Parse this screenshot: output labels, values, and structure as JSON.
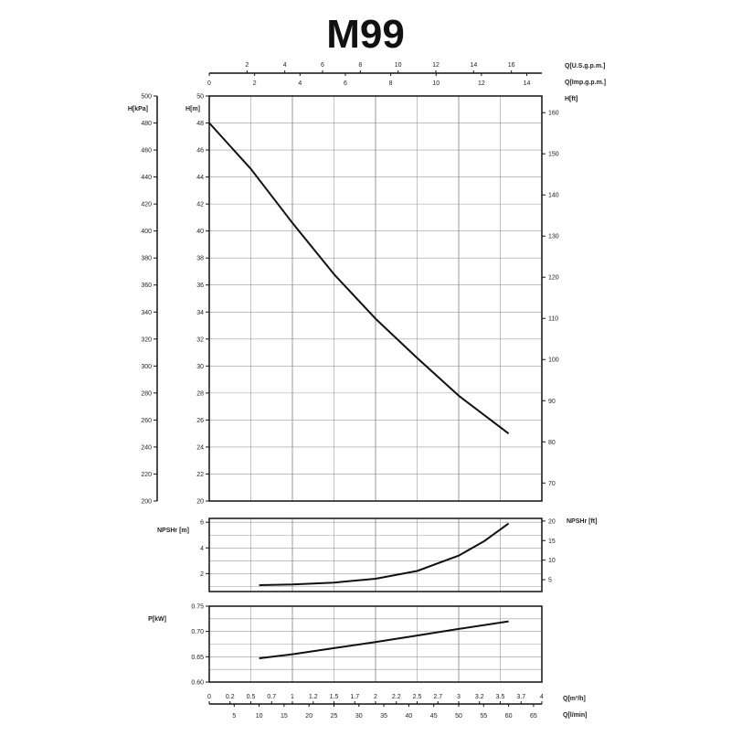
{
  "chart_data": [
    {
      "type": "line",
      "title": "M99",
      "xlabel": "Q[m³/h]",
      "ylabel": "H[m]",
      "secondary_ylabel_left": "H[kPa]",
      "secondary_ylabel_right": "H[ft]",
      "xlim": [
        0,
        4
      ],
      "ylim": [
        20,
        50
      ],
      "grid": true,
      "x": [
        0,
        0.5,
        1,
        1.5,
        2,
        2.5,
        3,
        3.6
      ],
      "y": [
        48,
        44.6,
        40.6,
        36.8,
        33.5,
        30.6,
        27.8,
        25
      ],
      "yticks": [
        "20",
        "22",
        "24",
        "26",
        "28",
        "30",
        "32",
        "34",
        "36",
        "38",
        "40",
        "42",
        "44",
        "46",
        "48",
        "50"
      ],
      "kpa_ticks": [
        "200",
        "220",
        "240",
        "260",
        "280",
        "300",
        "320",
        "340",
        "360",
        "380",
        "400",
        "420",
        "440",
        "460",
        "480",
        "500"
      ],
      "ft_ticks": [
        "70",
        "80",
        "90",
        "100",
        "110",
        "120",
        "130",
        "140",
        "150",
        "160"
      ]
    },
    {
      "type": "line",
      "ylabel": "NPSHr [m]",
      "secondary_ylabel_right": "NPSHr [ft]",
      "xlim": [
        0,
        4
      ],
      "ylim": [
        0.6,
        6.3
      ],
      "grid": true,
      "x": [
        0.6,
        1,
        1.5,
        2,
        2.5,
        3,
        3.3,
        3.6
      ],
      "y": [
        1.1,
        1.15,
        1.3,
        1.6,
        2.2,
        3.4,
        4.5,
        5.9
      ],
      "yticks": [
        "2",
        "4",
        "6"
      ],
      "ft_ticks": [
        "5",
        "10",
        "15",
        "20"
      ]
    },
    {
      "type": "line",
      "ylabel": "P[kW]",
      "xlim": [
        0,
        4
      ],
      "ylim": [
        0.6,
        0.75
      ],
      "grid": true,
      "x": [
        0.6,
        1,
        1.5,
        2,
        2.5,
        3,
        3.6
      ],
      "y": [
        0.647,
        0.655,
        0.667,
        0.679,
        0.692,
        0.705,
        0.72
      ],
      "yticks": [
        "0.60",
        "0.65",
        "0.70",
        "0.75"
      ]
    }
  ],
  "axes": {
    "us_gpm_label": "Q[U.S.g.p.m.]",
    "us_gpm_ticks": [
      "2",
      "4",
      "6",
      "8",
      "10",
      "12",
      "14",
      "16"
    ],
    "imp_gpm_label": "Q[Imp.g.p.m.]",
    "imp_gpm_ticks": [
      "0",
      "2",
      "4",
      "6",
      "8",
      "10",
      "12",
      "14"
    ],
    "m3h_label": "Q[m³/h]",
    "m3h_ticks": [
      "0",
      "0.2",
      "0.5",
      "0.7",
      "1",
      "1.2",
      "1.5",
      "1.7",
      "2",
      "2.2",
      "2.5",
      "2.7",
      "3",
      "3.2",
      "3.5",
      "3.7",
      "4"
    ],
    "lmin_label": "Q[l/min]",
    "lmin_ticks": [
      "5",
      "10",
      "15",
      "20",
      "25",
      "30",
      "35",
      "40",
      "45",
      "50",
      "55",
      "60",
      "65"
    ]
  },
  "colors": {
    "line": "#111111",
    "grid": "#999999"
  }
}
